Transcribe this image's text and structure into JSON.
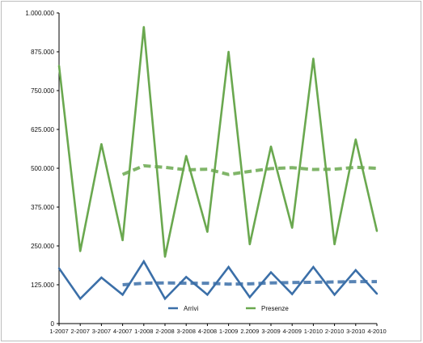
{
  "chart_data": {
    "type": "line",
    "title": "",
    "xlabel": "",
    "ylabel": "",
    "categories": [
      "1-2007",
      "2-2007",
      "3-2007",
      "4-2007",
      "1-2008",
      "2-2008",
      "3-2008",
      "4-2008",
      "1-2009",
      "2.2009",
      "3-2009",
      "4-2009",
      "1-2010",
      "2-2010",
      "3-2010",
      "4-2010"
    ],
    "y_ticks": [
      "0",
      "125.000",
      "250.000",
      "375.000",
      "500.000",
      "625.000",
      "750.000",
      "875.000",
      "1.000.000"
    ],
    "ylim": [
      0,
      1000000
    ],
    "grid": false,
    "legend_position": "bottom-inside",
    "series": [
      {
        "name": "Arrivi",
        "color": "#3b6fa8",
        "values": [
          178000,
          80000,
          148000,
          93000,
          200000,
          80000,
          150000,
          93000,
          182000,
          85000,
          165000,
          95000,
          182000,
          93000,
          172000,
          96000
        ],
        "trend": [
          null,
          null,
          null,
          125000,
          130000,
          131000,
          130000,
          130000,
          127000,
          128000,
          131000,
          132000,
          133000,
          134000,
          135000,
          135000
        ]
      },
      {
        "name": "Presenze",
        "color": "#6aa84f",
        "values": [
          830000,
          233000,
          578000,
          268000,
          955000,
          215000,
          540000,
          295000,
          875000,
          255000,
          570000,
          308000,
          853000,
          255000,
          593000,
          298000
        ],
        "trend": [
          null,
          null,
          null,
          480000,
          508000,
          503000,
          495000,
          497000,
          480000,
          490000,
          499000,
          502000,
          496000,
          497000,
          503000,
          500000
        ]
      }
    ]
  }
}
